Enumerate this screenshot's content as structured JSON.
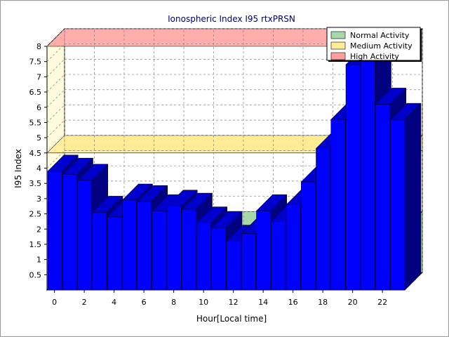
{
  "chart_data": {
    "type": "bar",
    "title": "Ionospheric Index I95 rtxPRSN",
    "xlabel": "Hour[Local time]",
    "ylabel": "I95 Index",
    "ylim": [
      0,
      8
    ],
    "yticks": [
      "0.5",
      "1",
      "1.5",
      "2",
      "2.5",
      "3",
      "3.5",
      "4",
      "4.5",
      "5",
      "5.5",
      "6",
      "6.5",
      "7",
      "7.5",
      "8"
    ],
    "xticks": [
      "0",
      "2",
      "4",
      "6",
      "8",
      "10",
      "12",
      "14",
      "16",
      "18",
      "20",
      "22"
    ],
    "x": [
      0,
      1,
      2,
      3,
      4,
      5,
      6,
      7,
      8,
      9,
      10,
      11,
      12,
      13,
      14,
      15,
      16,
      17,
      18,
      19,
      20,
      21,
      22,
      23
    ],
    "series": [
      {
        "values": [
          3.9,
          3.8,
          3.6,
          2.55,
          2.4,
          2.95,
          2.9,
          2.6,
          2.75,
          2.65,
          2.2,
          2.05,
          1.6,
          1.85,
          2.6,
          2.25,
          2.8,
          3.55,
          4.65,
          5.6,
          7.4,
          7.5,
          6.1,
          5.6
        ]
      }
    ],
    "activity_bands": [
      {
        "name": "Normal Activity",
        "range": [
          0,
          2
        ],
        "color": "#a8d8a8"
      },
      {
        "name": "Medium Activity",
        "range": [
          4,
          4.5
        ],
        "color": "#ffec94"
      },
      {
        "name": "High Activity",
        "range": [
          8,
          8
        ],
        "color": "#ff9f9f"
      }
    ],
    "bar_color": "#0000ff",
    "grid": true,
    "legend_position": "top-right"
  }
}
